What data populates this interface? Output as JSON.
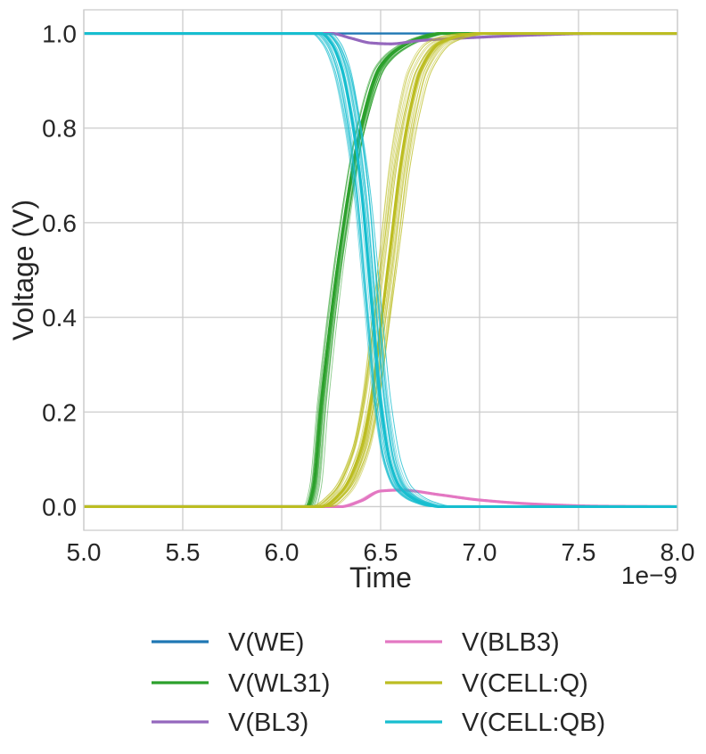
{
  "chart_data": {
    "type": "line",
    "title": "",
    "xlabel": "Time",
    "ylabel": "Voltage (V)",
    "x_offset_text": "1e−9",
    "xlim": [
      5.0,
      8.0
    ],
    "ylim": [
      -0.05,
      1.05
    ],
    "x_unit_scale": 1e-09,
    "grid": true,
    "legend_position": "below",
    "xticks": [
      5.0,
      5.5,
      6.0,
      6.5,
      7.0,
      7.5,
      8.0
    ],
    "xtick_labels": [
      "5.0",
      "5.5",
      "6.0",
      "6.5",
      "7.0",
      "7.5",
      "8.0"
    ],
    "yticks": [
      0.0,
      0.2,
      0.4,
      0.6,
      0.8,
      1.0
    ],
    "ytick_labels": [
      "0.0",
      "0.2",
      "0.4",
      "0.6",
      "0.8",
      "1.0"
    ],
    "note": "Monte Carlo traces; each series is drawn as a bundle of runs",
    "series": [
      {
        "name": "V(WE)",
        "color": "#1f77b4",
        "x": [
          5.0,
          8.0
        ],
        "y": [
          1.0,
          1.0
        ]
      },
      {
        "name": "V(WL31)",
        "color": "#2ca02c",
        "x": [
          5.0,
          6.13,
          6.16,
          6.2,
          6.3,
          6.4,
          6.5,
          6.6,
          6.7,
          6.8,
          6.9,
          7.0,
          8.0
        ],
        "y": [
          0.0,
          0.0,
          0.04,
          0.22,
          0.56,
          0.8,
          0.93,
          0.97,
          0.99,
          1.0,
          1.0,
          1.0,
          1.0
        ]
      },
      {
        "name": "V(BL3)",
        "color": "#9467bd",
        "x": [
          5.0,
          6.25,
          6.35,
          6.45,
          6.55,
          6.7,
          7.0,
          7.3,
          7.6,
          8.0
        ],
        "y": [
          1.0,
          1.0,
          0.99,
          0.98,
          0.978,
          0.985,
          0.992,
          0.997,
          1.0,
          1.0
        ]
      },
      {
        "name": "V(BLB3)",
        "color": "#e377c2",
        "x": [
          5.0,
          6.3,
          6.4,
          6.5,
          6.6,
          6.8,
          7.0,
          7.3,
          7.6,
          8.0
        ],
        "y": [
          0.0,
          0.0,
          0.012,
          0.033,
          0.035,
          0.025,
          0.014,
          0.005,
          0.001,
          0.0
        ]
      },
      {
        "name": "V(CELL:Q)",
        "color": "#bcbd22",
        "x": [
          5.0,
          6.2,
          6.3,
          6.4,
          6.45,
          6.5,
          6.55,
          6.6,
          6.65,
          6.7,
          6.8,
          6.9,
          7.0,
          8.0
        ],
        "y": [
          0.0,
          0.0,
          0.03,
          0.12,
          0.22,
          0.38,
          0.55,
          0.72,
          0.84,
          0.92,
          0.98,
          0.995,
          1.0,
          1.0
        ]
      },
      {
        "name": "V(CELL:QB)",
        "color": "#17becf",
        "x": [
          5.0,
          6.2,
          6.25,
          6.3,
          6.35,
          6.4,
          6.45,
          6.5,
          6.55,
          6.6,
          6.7,
          6.8,
          7.0,
          8.0
        ],
        "y": [
          1.0,
          1.0,
          0.98,
          0.93,
          0.83,
          0.68,
          0.45,
          0.22,
          0.09,
          0.04,
          0.01,
          0.0,
          0.0,
          0.0
        ]
      }
    ]
  }
}
